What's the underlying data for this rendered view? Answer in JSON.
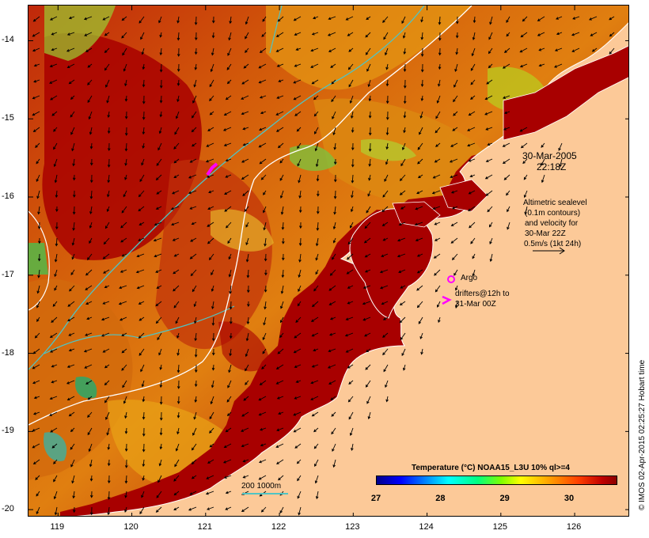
{
  "map": {
    "x_ticks": [
      "119",
      "120",
      "121",
      "122",
      "123",
      "124",
      "125",
      "126"
    ],
    "y_ticks": [
      "-14",
      "-15",
      "-16",
      "-17",
      "-18",
      "-19",
      "-20"
    ],
    "x_tick_values": [
      119,
      120,
      121,
      122,
      123,
      124,
      125,
      126
    ],
    "y_tick_values": [
      -14,
      -15,
      -16,
      -17,
      -18,
      -19,
      -20
    ],
    "lon_range": [
      118.6,
      126.75
    ],
    "lat_range": [
      -13.55,
      -20.1
    ]
  },
  "annotations": {
    "date": "30-Mar-2005",
    "time": "22:18Z",
    "sealevel_line1": "Altimetric sealevel",
    "sealevel_line2": "(0.1m contours)",
    "sealevel_line3": "and velocity for",
    "sealevel_line4": "30-Mar 22Z",
    "velocity_scale": "0.5m/s (1kt 24h)",
    "argo_label": "Argo",
    "drifters_line1": "drifters@12h to",
    "drifters_line2": "31-Mar 00Z",
    "depth_scale": "200  1000m"
  },
  "legend": {
    "title": "Temperature (°C) NOAA15_L3U 10% ql>=4",
    "labels": [
      "27",
      "28",
      "29",
      "30"
    ],
    "range": [
      27,
      30.75
    ]
  },
  "credit": "© IMOS 02-Apr-2015 02:25:27 Hobart time",
  "colors": {
    "land": "#fcc998",
    "warm_sea": "#a80000",
    "contour_200": "#4fc4c4",
    "contour_1000": "#ffffff",
    "argo_drifter": "#ff00ff"
  }
}
